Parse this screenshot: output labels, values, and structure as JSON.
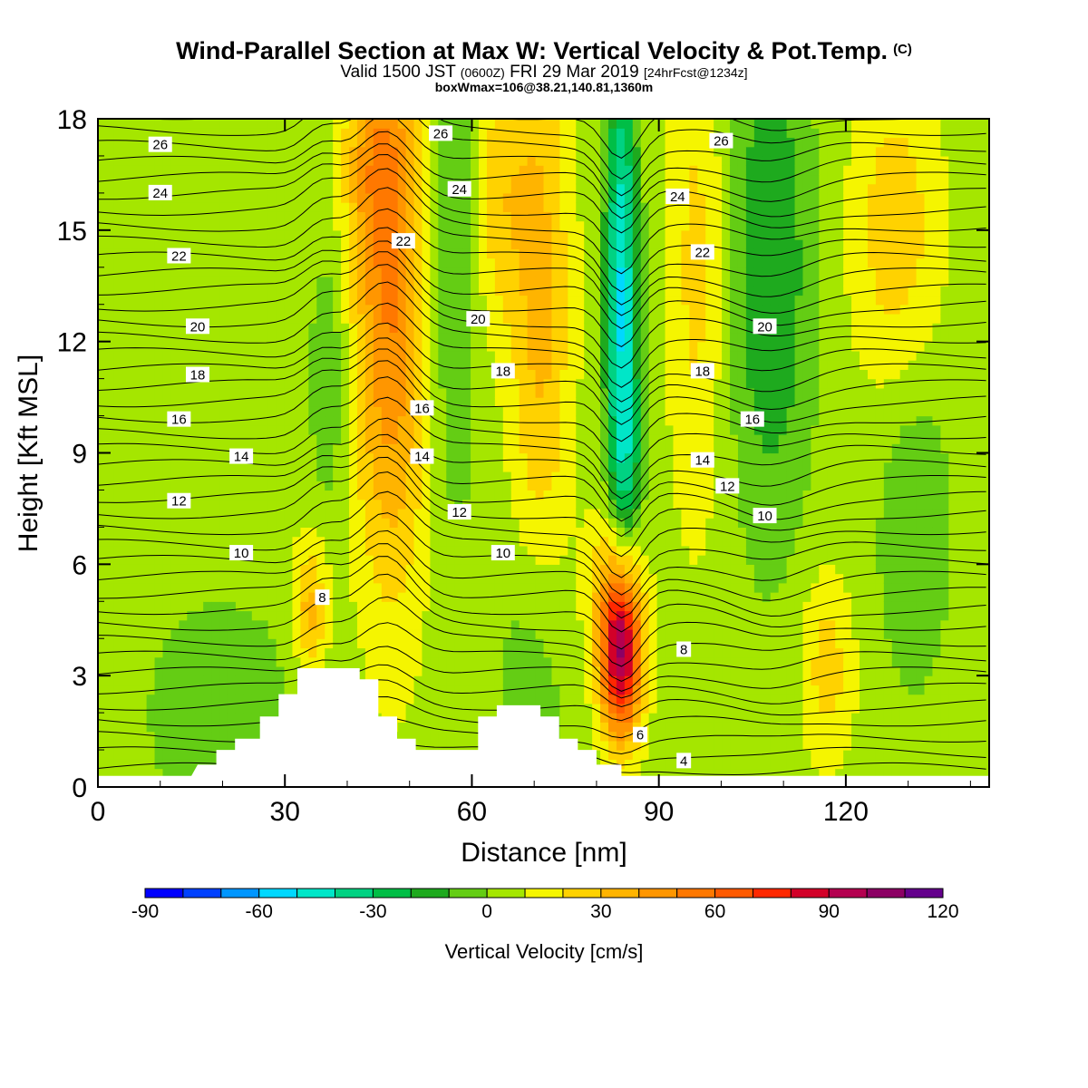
{
  "header": {
    "title": "Wind-Parallel Section at Max W: Vertical Velocity & Pot.Temp.",
    "copyright": "(C)",
    "valid_prefix": "Valid 1500 JST",
    "valid_utc": "(0600Z)",
    "valid_date": "FRI 29 Mar 2019",
    "forecast_info": "[24hrFcst@1234z]",
    "box_info": "boxWmax=106@38.21,140.81,1360m"
  },
  "chart_data": {
    "type": "heatmap",
    "xlabel": "Distance [nm]",
    "ylabel": "Height [Kft MSL]",
    "xlim": [
      0,
      143
    ],
    "ylim": [
      0,
      18
    ],
    "x_ticks": [
      "0",
      "30",
      "60",
      "90",
      "120"
    ],
    "x_tick_values": [
      0,
      30,
      60,
      90,
      120
    ],
    "y_ticks": [
      "0",
      "3",
      "6",
      "9",
      "12",
      "15",
      "18"
    ],
    "y_tick_values": [
      0,
      3,
      6,
      9,
      12,
      15,
      18
    ],
    "colorbar": {
      "title": "Vertical Velocity [cm/s]",
      "min": -90,
      "max": 120,
      "step": 10,
      "labels": [
        "-90",
        "-60",
        "-30",
        "0",
        "30",
        "60",
        "90",
        "120"
      ],
      "label_values": [
        -90,
        -60,
        -30,
        0,
        30,
        60,
        90,
        120
      ],
      "colors": [
        "#0000ff",
        "#0041ff",
        "#0096ff",
        "#00d8ff",
        "#00e6c8",
        "#00d282",
        "#00be46",
        "#1eaa1e",
        "#64cd14",
        "#a5e600",
        "#f5f500",
        "#ffd200",
        "#ffb400",
        "#ff9600",
        "#ff7800",
        "#ff5a00",
        "#ff2800",
        "#d20028",
        "#b40050",
        "#8c0064",
        "#64008c"
      ]
    },
    "velocity_features": [
      {
        "x": 47,
        "z": 13,
        "sx": 4.2,
        "sz": 5.5,
        "w": 45
      },
      {
        "x": 44,
        "z": 17,
        "sx": 3.5,
        "sz": 2.0,
        "w": 20
      },
      {
        "x": 34,
        "z": 4.8,
        "sx": 2.0,
        "sz": 1.3,
        "w": 30
      },
      {
        "x": 84,
        "z": 3.5,
        "sx": 2.2,
        "sz": 1.6,
        "w": 80
      },
      {
        "x": 83,
        "z": 5.0,
        "sx": 3.0,
        "sz": 1.8,
        "w": 30
      },
      {
        "x": 71,
        "z": 13,
        "sx": 3.5,
        "sz": 6.0,
        "w": 28
      },
      {
        "x": 64,
        "z": 16,
        "sx": 3.2,
        "sz": 2.5,
        "w": 20
      },
      {
        "x": 96,
        "z": 14,
        "sx": 3.2,
        "sz": 5.0,
        "w": 18
      },
      {
        "x": 128,
        "z": 15,
        "sx": 5.0,
        "sz": 3.0,
        "w": 22
      },
      {
        "x": 117,
        "z": 3.2,
        "sx": 3.0,
        "sz": 1.8,
        "w": 20
      },
      {
        "x": 84,
        "z": 13.5,
        "sx": 1.8,
        "sz": 4.5,
        "w": -55
      },
      {
        "x": 85,
        "z": 8.5,
        "sx": 1.8,
        "sz": 2.0,
        "w": -20
      },
      {
        "x": 108,
        "z": 14,
        "sx": 4.5,
        "sz": 5.0,
        "w": -25
      },
      {
        "x": 57,
        "z": 14.5,
        "sx": 2.8,
        "sz": 5.0,
        "w": -18
      },
      {
        "x": 37,
        "z": 11,
        "sx": 2.0,
        "sz": 2.5,
        "w": -15
      },
      {
        "x": 131,
        "z": 7,
        "sx": 4.0,
        "sz": 3.0,
        "w": -15
      },
      {
        "x": 70,
        "z": 3,
        "sx": 4.0,
        "sz": 3.0,
        "w": -15
      },
      {
        "x": 20,
        "z": 2,
        "sx": 10,
        "sz": 2.5,
        "w": -10
      }
    ],
    "terrain_kft": [
      [
        0,
        0.3
      ],
      [
        15,
        0.3
      ],
      [
        16,
        0.6
      ],
      [
        19,
        0.6
      ],
      [
        19,
        1.0
      ],
      [
        22,
        1.0
      ],
      [
        22,
        1.3
      ],
      [
        26,
        1.3
      ],
      [
        26,
        1.9
      ],
      [
        29,
        1.9
      ],
      [
        29,
        2.5
      ],
      [
        32,
        2.5
      ],
      [
        32,
        3.2
      ],
      [
        42,
        3.2
      ],
      [
        42,
        2.9
      ],
      [
        45,
        2.9
      ],
      [
        45,
        1.9
      ],
      [
        48,
        1.9
      ],
      [
        48,
        1.3
      ],
      [
        51,
        1.3
      ],
      [
        51,
        1.0
      ],
      [
        61,
        1.0
      ],
      [
        61,
        1.9
      ],
      [
        64,
        1.9
      ],
      [
        64,
        2.2
      ],
      [
        71,
        2.2
      ],
      [
        71,
        1.9
      ],
      [
        74,
        1.9
      ],
      [
        74,
        1.3
      ],
      [
        77,
        1.3
      ],
      [
        77,
        1.0
      ],
      [
        80,
        1.0
      ],
      [
        80,
        0.6
      ],
      [
        84,
        0.6
      ],
      [
        84,
        0.3
      ],
      [
        143,
        0.3
      ]
    ],
    "theta_labels": [
      {
        "text": "26",
        "x": 10,
        "z": 17.3
      },
      {
        "text": "24",
        "x": 10,
        "z": 16.0
      },
      {
        "text": "22",
        "x": 13,
        "z": 14.3
      },
      {
        "text": "20",
        "x": 16,
        "z": 12.4
      },
      {
        "text": "18",
        "x": 16,
        "z": 11.1
      },
      {
        "text": "16",
        "x": 13,
        "z": 9.9
      },
      {
        "text": "14",
        "x": 23,
        "z": 8.9
      },
      {
        "text": "12",
        "x": 13,
        "z": 7.7
      },
      {
        "text": "10",
        "x": 23,
        "z": 6.3
      },
      {
        "text": "8",
        "x": 36,
        "z": 5.1
      },
      {
        "text": "26",
        "x": 55,
        "z": 17.6
      },
      {
        "text": "24",
        "x": 58,
        "z": 16.1
      },
      {
        "text": "22",
        "x": 49,
        "z": 14.7
      },
      {
        "text": "20",
        "x": 61,
        "z": 12.6
      },
      {
        "text": "18",
        "x": 65,
        "z": 11.2
      },
      {
        "text": "16",
        "x": 52,
        "z": 10.2
      },
      {
        "text": "14",
        "x": 52,
        "z": 8.9
      },
      {
        "text": "12",
        "x": 58,
        "z": 7.4
      },
      {
        "text": "10",
        "x": 65,
        "z": 6.3
      },
      {
        "text": "26",
        "x": 100,
        "z": 17.4
      },
      {
        "text": "24",
        "x": 93,
        "z": 15.9
      },
      {
        "text": "22",
        "x": 97,
        "z": 14.4
      },
      {
        "text": "20",
        "x": 107,
        "z": 12.4
      },
      {
        "text": "18",
        "x": 97,
        "z": 11.2
      },
      {
        "text": "16",
        "x": 105,
        "z": 9.9
      },
      {
        "text": "14",
        "x": 97,
        "z": 8.8
      },
      {
        "text": "12",
        "x": 101,
        "z": 8.1
      },
      {
        "text": "10",
        "x": 107,
        "z": 7.3
      },
      {
        "text": "8",
        "x": 94,
        "z": 3.7
      },
      {
        "text": "6",
        "x": 87,
        "z": 1.4
      },
      {
        "text": "4",
        "x": 94,
        "z": 0.7
      }
    ]
  }
}
